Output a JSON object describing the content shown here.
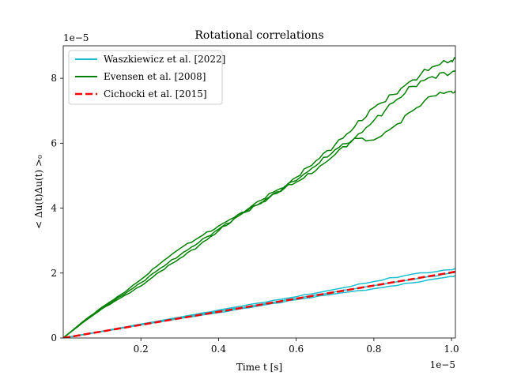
{
  "chart_data": {
    "type": "line",
    "title": "Rotational correlations",
    "xlabel": "Time t [s]",
    "ylabel": "< Δu(t)Δu(t) >₀",
    "x_offset_label": "1e−5",
    "y_offset_label": "1e−5",
    "xlim": [
      0.0,
      1.01
    ],
    "ylim": [
      0.0,
      9.0
    ],
    "xticks": [
      0.2,
      0.4,
      0.6,
      0.8,
      1.0
    ],
    "xtick_labels": [
      "0.2",
      "0.4",
      "0.6",
      "0.8",
      "1.0"
    ],
    "yticks": [
      0,
      2,
      4,
      6,
      8
    ],
    "ytick_labels": [
      "0",
      "2",
      "4",
      "6",
      "8"
    ],
    "grid": false,
    "legend_position": "top-left",
    "legend": [
      {
        "label": "Waszkiewicz et al. [2022]",
        "color": "#17becf",
        "style": "solid"
      },
      {
        "label": "Evensen et al. [2008]",
        "color": "#008000",
        "style": "solid"
      },
      {
        "label": "Cichocki et al. [2015]",
        "color": "#ff0000",
        "style": "dashed"
      }
    ],
    "series": [
      {
        "name": "Waszkiewicz et al. [2022]",
        "color": "#17becf",
        "style": "solid",
        "x": [
          0.0,
          0.1,
          0.2,
          0.3,
          0.4,
          0.5,
          0.6,
          0.7,
          0.8,
          0.9,
          1.0,
          1.01
        ],
        "y": [
          0.0,
          0.21,
          0.43,
          0.64,
          0.86,
          1.07,
          1.27,
          1.5,
          1.74,
          1.97,
          2.1,
          2.12
        ]
      },
      {
        "name": "Waszkiewicz et al. [2022]",
        "color": "#17becf",
        "style": "solid",
        "x": [
          0.0,
          0.1,
          0.2,
          0.3,
          0.4,
          0.5,
          0.6,
          0.7,
          0.8,
          0.9,
          1.0,
          1.01
        ],
        "y": [
          0.0,
          0.2,
          0.41,
          0.62,
          0.82,
          1.02,
          1.22,
          1.42,
          1.62,
          1.8,
          2.0,
          2.02
        ]
      },
      {
        "name": "Waszkiewicz et al. [2022]",
        "color": "#17becf",
        "style": "solid",
        "x": [
          0.0,
          0.1,
          0.2,
          0.3,
          0.4,
          0.5,
          0.6,
          0.7,
          0.8,
          0.9,
          1.0,
          1.01
        ],
        "y": [
          0.0,
          0.2,
          0.4,
          0.6,
          0.78,
          0.98,
          1.18,
          1.36,
          1.52,
          1.7,
          1.9,
          1.92
        ]
      },
      {
        "name": "Evensen et al. [2008]",
        "color": "#008000",
        "style": "solid",
        "x": [
          0.0,
          0.05,
          0.1,
          0.15,
          0.2,
          0.25,
          0.3,
          0.35,
          0.4,
          0.45,
          0.5,
          0.55,
          0.6,
          0.65,
          0.7,
          0.75,
          0.8,
          0.85,
          0.9,
          0.95,
          1.0,
          1.01
        ],
        "y": [
          0.0,
          0.5,
          0.95,
          1.35,
          1.8,
          2.3,
          2.75,
          3.1,
          3.45,
          3.8,
          4.1,
          4.45,
          4.95,
          5.45,
          5.95,
          6.5,
          7.1,
          7.5,
          7.95,
          8.35,
          8.55,
          8.6
        ]
      },
      {
        "name": "Evensen et al. [2008]",
        "color": "#008000",
        "style": "solid",
        "x": [
          0.0,
          0.05,
          0.1,
          0.15,
          0.2,
          0.25,
          0.3,
          0.35,
          0.4,
          0.45,
          0.5,
          0.55,
          0.6,
          0.65,
          0.7,
          0.75,
          0.8,
          0.85,
          0.9,
          0.95,
          1.0,
          1.01
        ],
        "y": [
          0.0,
          0.48,
          0.92,
          1.3,
          1.7,
          2.15,
          2.55,
          2.95,
          3.35,
          3.75,
          4.2,
          4.55,
          4.85,
          5.3,
          5.8,
          6.15,
          6.7,
          7.25,
          7.75,
          8.05,
          8.18,
          8.22
        ]
      },
      {
        "name": "Evensen et al. [2008]",
        "color": "#008000",
        "style": "solid",
        "x": [
          0.0,
          0.05,
          0.1,
          0.15,
          0.2,
          0.25,
          0.3,
          0.35,
          0.4,
          0.45,
          0.5,
          0.55,
          0.6,
          0.65,
          0.7,
          0.75,
          0.8,
          0.85,
          0.9,
          0.95,
          1.0,
          1.01
        ],
        "y": [
          0.0,
          0.47,
          0.9,
          1.25,
          1.6,
          2.05,
          2.45,
          2.85,
          3.3,
          3.75,
          4.1,
          4.5,
          4.8,
          5.15,
          5.65,
          6.15,
          6.1,
          6.5,
          7.0,
          7.45,
          7.6,
          7.62
        ]
      },
      {
        "name": "Cichocki et al. [2015]",
        "color": "#ff0000",
        "style": "dashed",
        "x": [
          0.0,
          1.01
        ],
        "y": [
          0.0,
          2.04
        ]
      }
    ]
  }
}
